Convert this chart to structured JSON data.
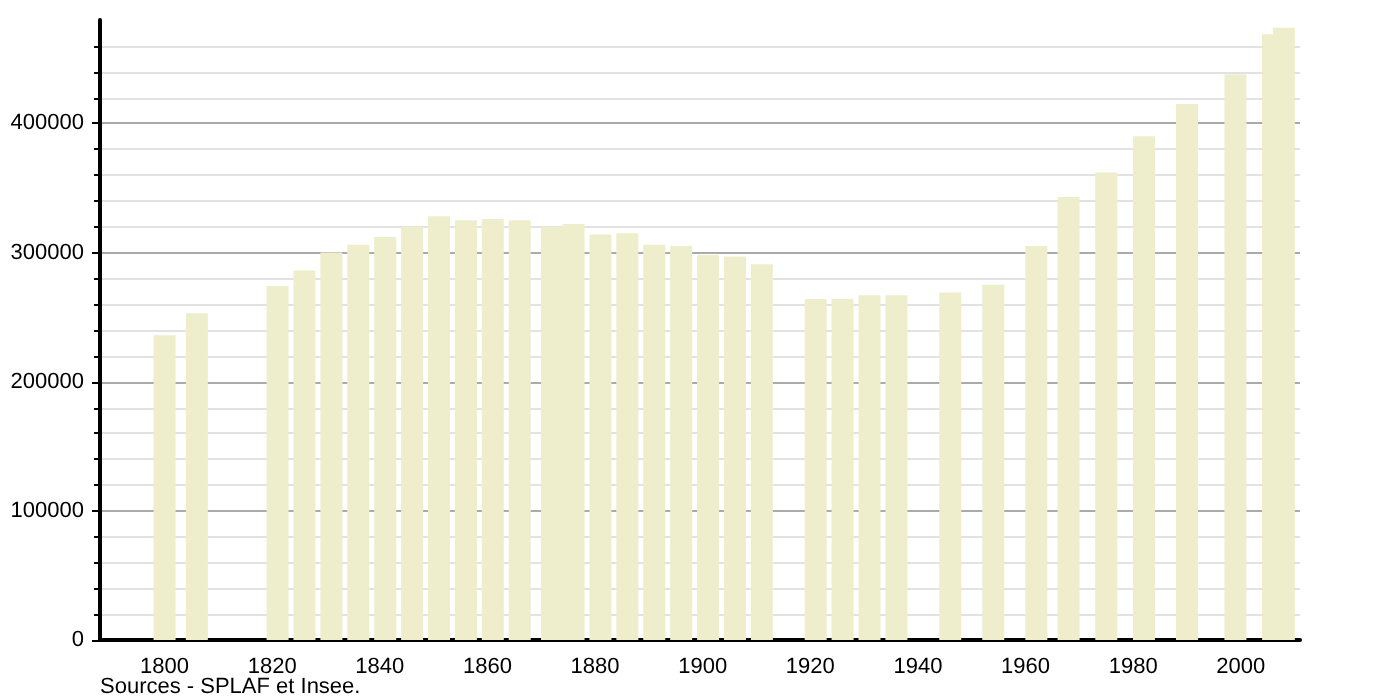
{
  "chart_data": {
    "type": "bar",
    "x": [
      1800,
      1806,
      1821,
      1826,
      1831,
      1836,
      1841,
      1846,
      1851,
      1856,
      1861,
      1866,
      1872,
      1876,
      1881,
      1886,
      1891,
      1896,
      1901,
      1906,
      1911,
      1921,
      1926,
      1931,
      1936,
      1946,
      1954,
      1962,
      1968,
      1975,
      1982,
      1990,
      1999,
      2006,
      2008
    ],
    "values": [
      236000,
      253000,
      274000,
      286000,
      300000,
      306000,
      312000,
      320000,
      328000,
      325000,
      326000,
      325000,
      320000,
      322000,
      314000,
      315000,
      306000,
      305000,
      298000,
      297000,
      291000,
      264000,
      264000,
      267000,
      267000,
      269000,
      275000,
      305000,
      343000,
      362000,
      390000,
      415000,
      438000,
      469000,
      474000
    ],
    "color": "#eeeecc",
    "xlim": [
      1788,
      2011
    ],
    "xticks": [
      1800,
      1820,
      1840,
      1860,
      1880,
      1900,
      1920,
      1940,
      1960,
      1980,
      2000
    ],
    "ylim": [
      0,
      480000
    ],
    "yticks": [
      0,
      100000,
      200000,
      300000,
      400000
    ],
    "grid": "y",
    "annotations": [
      "Sources - SPLAF et Insee."
    ]
  }
}
